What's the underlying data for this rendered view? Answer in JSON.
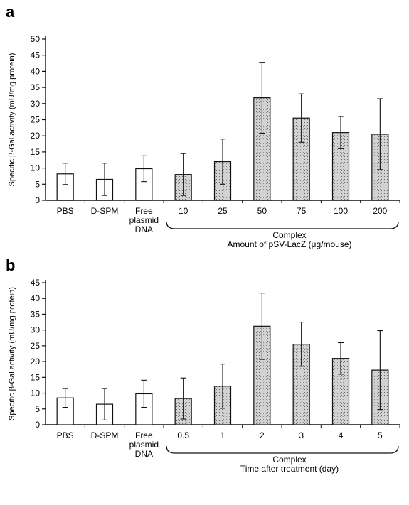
{
  "chart_data": [
    {
      "type": "bar",
      "panel": "a",
      "ylabel": "Specific β-Gal activity (mU/mg protein)",
      "ylim": [
        0,
        50
      ],
      "yticks": [
        0,
        5,
        10,
        15,
        20,
        25,
        30,
        35,
        40,
        45,
        50
      ],
      "categories": [
        [
          "PBS"
        ],
        [
          "D-SPM"
        ],
        [
          "Free",
          "plasmid",
          "DNA"
        ],
        [
          "10"
        ],
        [
          "25"
        ],
        [
          "50"
        ],
        [
          "75"
        ],
        [
          "100"
        ],
        [
          "200"
        ]
      ],
      "values": [
        8.2,
        6.5,
        9.8,
        8.0,
        12.0,
        31.8,
        25.5,
        21.0,
        20.5
      ],
      "errors": [
        3.3,
        5.0,
        4.0,
        6.5,
        7.0,
        11.0,
        7.5,
        5.0,
        11.0
      ],
      "hollow_count": 3,
      "group_label": [
        "Complex",
        "Amount of pSV-LacZ (μg/mouse)"
      ],
      "grid": false
    },
    {
      "type": "bar",
      "panel": "b",
      "ylabel": "Specific β-Gal activity (mU/mg protein)",
      "ylim": [
        0,
        45
      ],
      "yticks": [
        0,
        5,
        10,
        15,
        20,
        25,
        30,
        35,
        40,
        45
      ],
      "categories": [
        [
          "PBS"
        ],
        [
          "D-SPM"
        ],
        [
          "Free",
          "plasmid",
          "DNA"
        ],
        [
          "0.5"
        ],
        [
          "1"
        ],
        [
          "2"
        ],
        [
          "3"
        ],
        [
          "4"
        ],
        [
          "5"
        ]
      ],
      "values": [
        8.5,
        6.5,
        9.8,
        8.3,
        12.2,
        31.2,
        25.5,
        21.0,
        17.3
      ],
      "errors": [
        3.0,
        5.0,
        4.3,
        6.5,
        7.0,
        10.5,
        7.0,
        5.0,
        12.5
      ],
      "hollow_count": 3,
      "group_label": [
        "Complex",
        "Time after treatment (day)"
      ],
      "grid": false
    }
  ]
}
